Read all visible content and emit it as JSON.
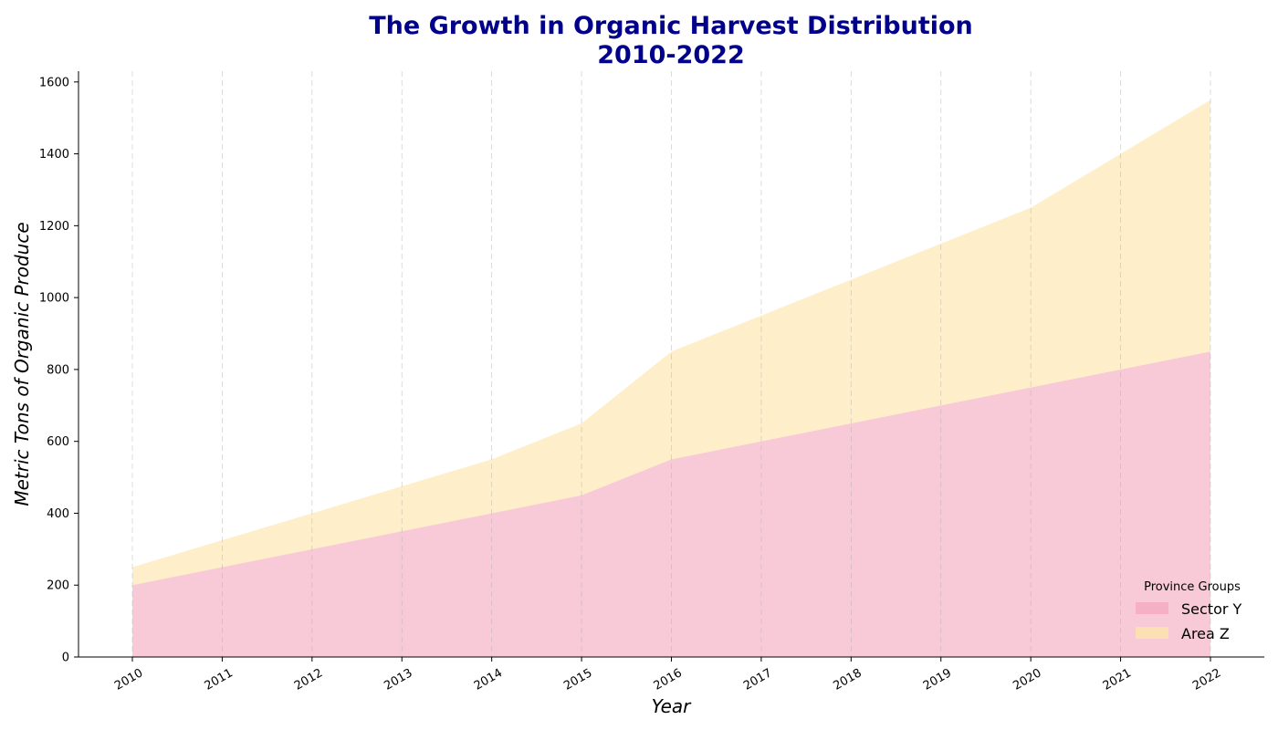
{
  "chart_data": {
    "type": "area",
    "stacked": true,
    "title_lines": [
      "The Growth in Organic Harvest Distribution",
      "2010-2022"
    ],
    "xlabel": "Year",
    "ylabel": "Metric Tons of Organic Produce",
    "x": [
      "2010",
      "2011",
      "2012",
      "2013",
      "2014",
      "2015",
      "2016",
      "2017",
      "2018",
      "2019",
      "2020",
      "2021",
      "2022"
    ],
    "series": [
      {
        "name": "Sector Y",
        "values": [
          200,
          250,
          300,
          350,
          400,
          450,
          550,
          600,
          650,
          700,
          750,
          800,
          850
        ],
        "color": "#f4a7bc"
      },
      {
        "name": "Area Z",
        "values": [
          50,
          75,
          100,
          125,
          150,
          200,
          300,
          350,
          400,
          450,
          500,
          600,
          700
        ],
        "color": "#fde5a6"
      }
    ],
    "ylim": [
      0,
      1630
    ],
    "yticks": [
      0,
      200,
      400,
      600,
      800,
      1000,
      1200,
      1400,
      1600
    ],
    "grid": "vertical-dashed",
    "legend": {
      "title": "Province Groups",
      "placement": "lower-right"
    }
  }
}
